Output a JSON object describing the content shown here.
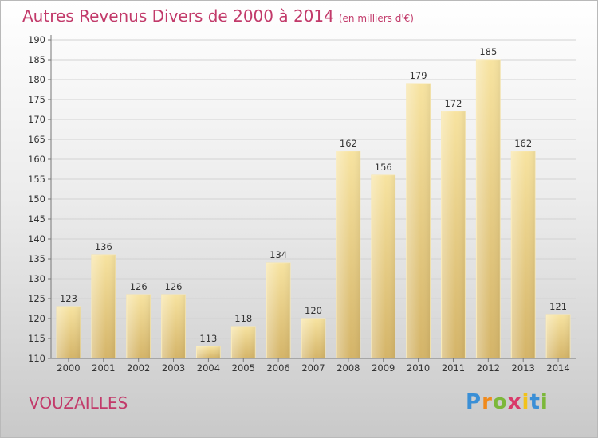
{
  "header": {
    "title": "Autres Revenus Divers de 2000 à 2014",
    "subtitle": "(en milliers d'€)"
  },
  "footer": {
    "place": "VOUZAILLES",
    "logo_letters": [
      "P",
      "r",
      "o",
      "x",
      "i",
      "t",
      "i"
    ],
    "logo_colors": [
      "#3a8fd6",
      "#f08a1c",
      "#7cb83a",
      "#d93a6a",
      "#f2c21a",
      "#3a8fd6",
      "#7cb83a"
    ]
  },
  "chart_data": {
    "type": "bar",
    "title": "Autres Revenus Divers de 2000 à 2014",
    "categories": [
      "2000",
      "2001",
      "2002",
      "2003",
      "2004",
      "2005",
      "2006",
      "2007",
      "2008",
      "2009",
      "2010",
      "2011",
      "2012",
      "2013",
      "2014"
    ],
    "values": [
      123,
      136,
      126,
      126,
      113,
      118,
      134,
      120,
      162,
      156,
      179,
      172,
      185,
      162,
      121
    ],
    "ylim": [
      110,
      190
    ],
    "yticks": [
      110,
      115,
      120,
      125,
      130,
      135,
      140,
      145,
      150,
      155,
      160,
      165,
      170,
      175,
      180,
      185,
      190
    ],
    "grid": "horizontal",
    "bar_color": "#f3dc8e",
    "bar_color_dark": "#d7b96a"
  }
}
